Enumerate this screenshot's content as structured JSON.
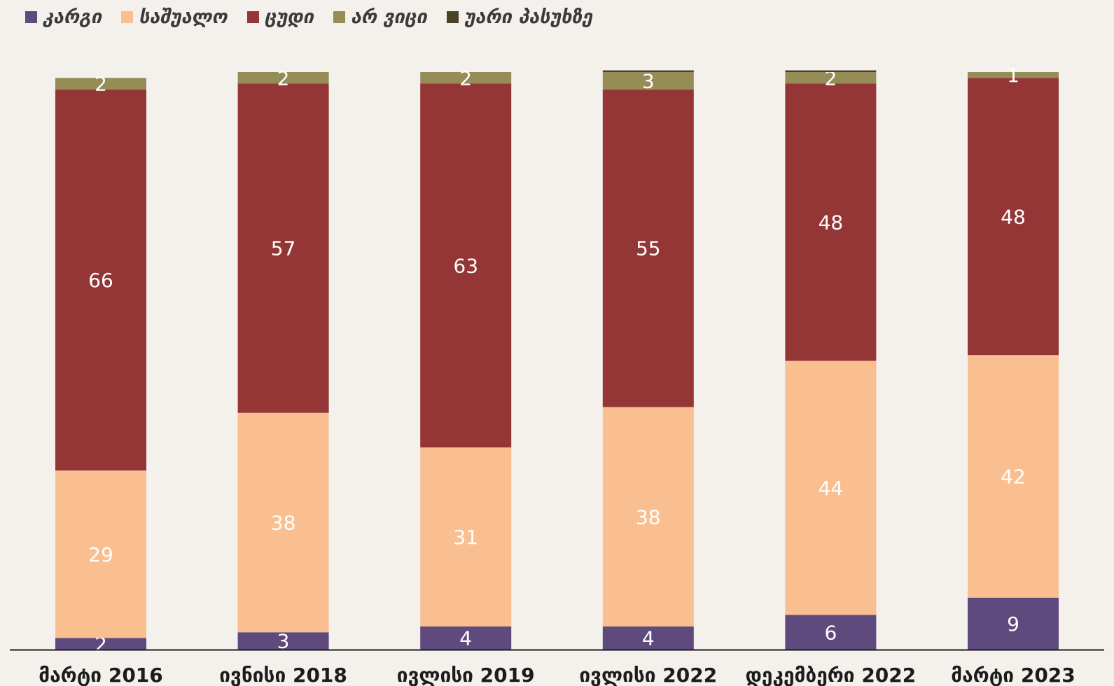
{
  "chart_data": {
    "type": "bar",
    "stacked": true,
    "categories": [
      "მარტი 2016",
      "ივნისი 2018",
      "ივლისი 2019",
      "ივლისი 2022",
      "დეკემბერი 2022",
      "მარტი 2023"
    ],
    "series": [
      {
        "name": "კარგი",
        "color": "#5e4a7c",
        "values": [
          2,
          3,
          4,
          4,
          6,
          9
        ]
      },
      {
        "name": "საშუალო",
        "color": "#f9bf90",
        "values": [
          29,
          38,
          31,
          38,
          44,
          42
        ]
      },
      {
        "name": "ცუდი",
        "color": "#943636",
        "values": [
          66,
          57,
          63,
          55,
          48,
          48
        ]
      },
      {
        "name": "არ ვიცი",
        "color": "#958c57",
        "values": [
          2,
          2,
          2,
          3,
          2,
          1
        ]
      },
      {
        "name": "უარი პასუხზე",
        "color": "#4a4226",
        "values": [
          0,
          0,
          0,
          0.3,
          0.3,
          0
        ]
      }
    ],
    "ylim": [
      0,
      100
    ],
    "legend_position": "top-left",
    "grid": false,
    "title": "",
    "xlabel": "",
    "ylabel": ""
  }
}
